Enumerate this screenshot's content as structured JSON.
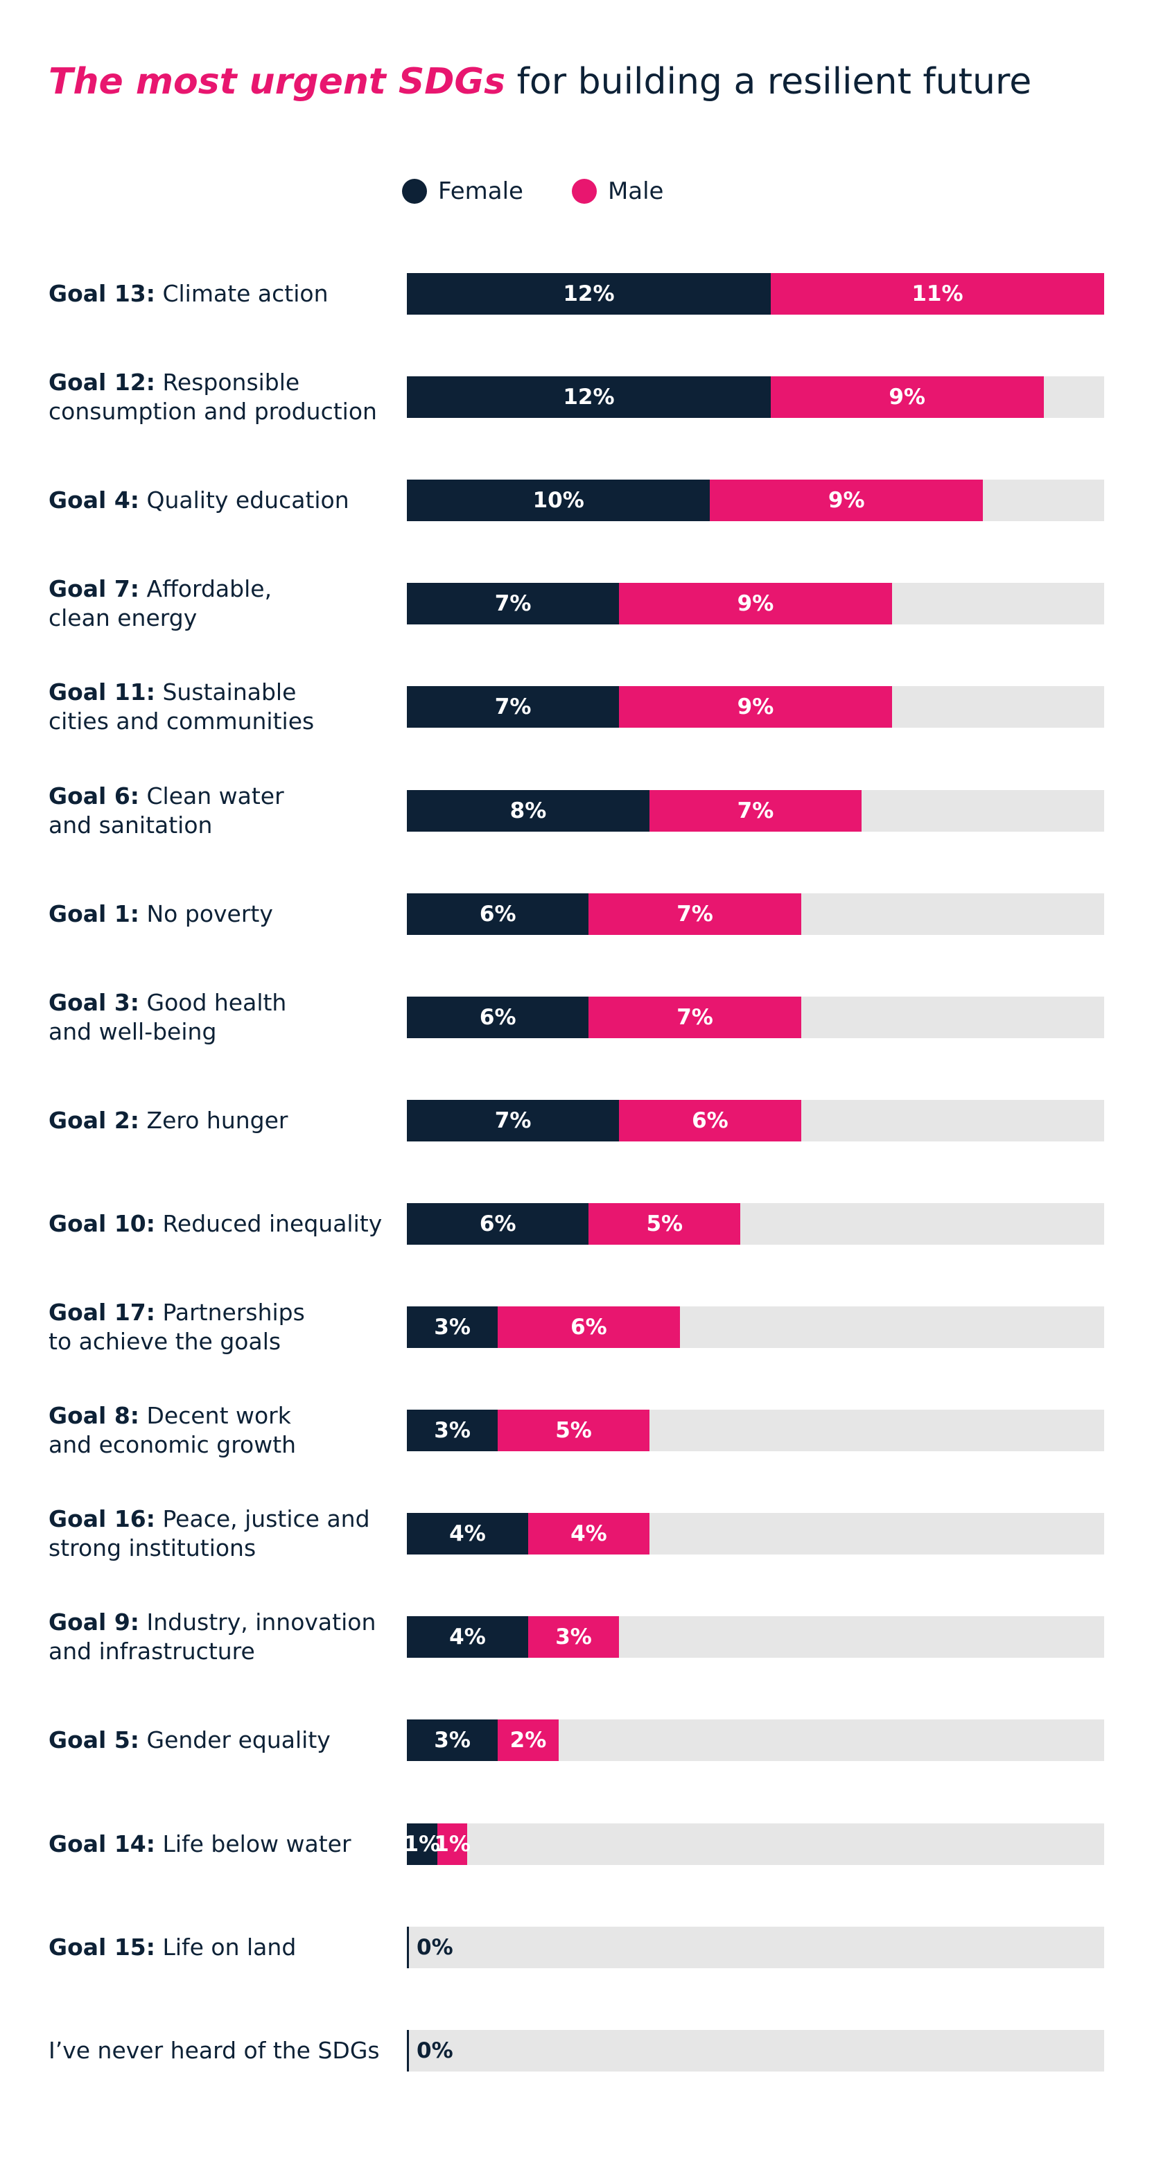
{
  "title": {
    "accent": "The most urgent SDGs",
    "rest": " for building a resilient future"
  },
  "colors": {
    "female": "#0d2136",
    "male": "#e8166f",
    "track": "#e6e6e6"
  },
  "chart_data": {
    "type": "bar",
    "orientation": "horizontal",
    "stacked": true,
    "title": "The most urgent SDGs for building a resilient future",
    "xlim": [
      0,
      23
    ],
    "legend": [
      "Female",
      "Male"
    ],
    "categories": [
      {
        "bold": "Goal 13:",
        "line1": "Climate action",
        "line2": "",
        "female": 12,
        "male": 11
      },
      {
        "bold": "Goal 12:",
        "line1": "Responsible",
        "line2": "consumption and production",
        "female": 12,
        "male": 9
      },
      {
        "bold": "Goal 4:",
        "line1": "Quality education",
        "line2": "",
        "female": 10,
        "male": 9
      },
      {
        "bold": "Goal 7:",
        "line1": "Affordable,",
        "line2": "clean energy",
        "female": 7,
        "male": 9
      },
      {
        "bold": "Goal 11:",
        "line1": "Sustainable",
        "line2": "cities and communities",
        "female": 7,
        "male": 9
      },
      {
        "bold": "Goal 6:",
        "line1": "Clean water",
        "line2": "and sanitation",
        "female": 8,
        "male": 7
      },
      {
        "bold": "Goal 1:",
        "line1": "No poverty",
        "line2": "",
        "female": 6,
        "male": 7
      },
      {
        "bold": "Goal 3:",
        "line1": "Good health",
        "line2": "and well-being",
        "female": 6,
        "male": 7
      },
      {
        "bold": "Goal 2:",
        "line1": "Zero hunger",
        "line2": "",
        "female": 7,
        "male": 6
      },
      {
        "bold": "Goal 10:",
        "line1": "Reduced inequality",
        "line2": "",
        "female": 6,
        "male": 5
      },
      {
        "bold": "Goal 17:",
        "line1": "Partnerships",
        "line2": "to achieve the goals",
        "female": 3,
        "male": 6
      },
      {
        "bold": "Goal 8:",
        "line1": "Decent work",
        "line2": "and economic growth",
        "female": 3,
        "male": 5
      },
      {
        "bold": "Goal 16:",
        "line1": "Peace, justice and",
        "line2": "strong institutions",
        "female": 4,
        "male": 4
      },
      {
        "bold": "Goal 9:",
        "line1": "Industry, innovation",
        "line2": "and infrastructure",
        "female": 4,
        "male": 3
      },
      {
        "bold": "Goal 5:",
        "line1": "Gender equality",
        "line2": "",
        "female": 3,
        "male": 2
      },
      {
        "bold": "Goal 14:",
        "line1": "Life below water",
        "line2": "",
        "female": 1,
        "male": 1
      },
      {
        "bold": "Goal 15:",
        "line1": "Life on land",
        "line2": "",
        "total": 0
      },
      {
        "bold": "",
        "line1": "I’ve never heard of the SDGs",
        "line2": "",
        "total": 0
      }
    ]
  }
}
